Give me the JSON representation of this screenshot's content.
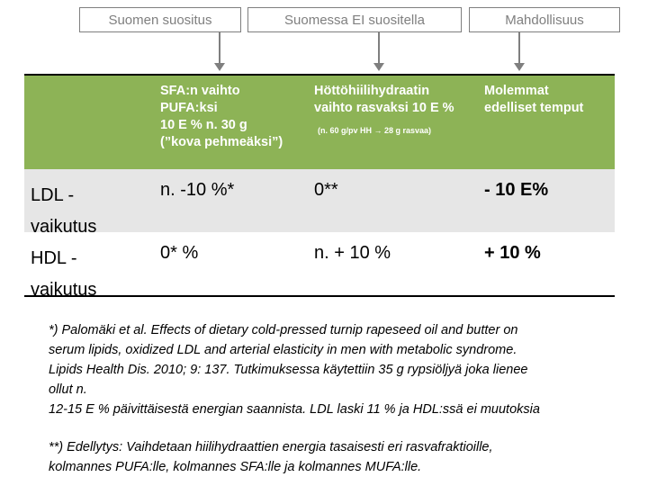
{
  "top_labels": {
    "label1": "Suomen suositus",
    "label2": "Suomessa EI suositella",
    "label3": "Mahdollisuus"
  },
  "table": {
    "header": {
      "col1": [
        "SFA:n  vaihto",
        "PUFA:ksi",
        "10 E % n. 30 g",
        "(”kova pehmeäksi”)"
      ],
      "col2": [
        "Höttöhiilihydraatin",
        "vaihto rasvaksi 10 E %"
      ],
      "col2_small": "(n. 60 g/pv HH → 28 g rasvaa)",
      "col3": [
        "Molemmat",
        "edelliset temput"
      ]
    },
    "rows": [
      {
        "label1": "LDL -",
        "label2": "vaikutus",
        "c1": "n. -10  %*",
        "c2": "0**",
        "c3": "- 10 E%"
      },
      {
        "label1": "HDL -",
        "label2": "vaikutus",
        "c1": "0* %",
        "c2": "n. + 10 %",
        "c3": "+ 10 %"
      }
    ]
  },
  "notes": {
    "n1": [
      "*) Palomäki et al. Effects of dietary cold-pressed turnip rapeseed oil and butter on",
      "serum lipids, oxidized LDL and arterial elasticity in men with metabolic syndrome.",
      "Lipids Health Dis. 2010; 9: 137. Tutkimuksessa käytettiin 35 g rypsiöljyä joka lienee",
      "ollut n.",
      "12-15 E % päivittäisestä energian saannista. LDL laski 11 % ja HDL:ssä ei muutoksia"
    ],
    "n2": [
      "**) Edellytys: Vaihdetaan hiilihydraattien energia tasaisesti eri rasvafraktioille,",
      "kolmannes PUFA:lle, kolmannes SFA:lle ja kolmannes MUFA:lle."
    ]
  }
}
